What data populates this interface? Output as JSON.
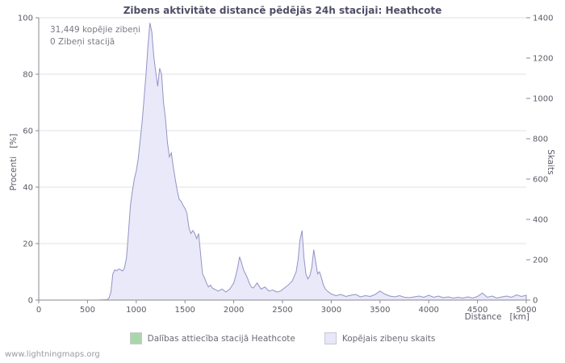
{
  "title": "Zibens aktivitāte distancē pēdējās 24h stacijai: Heathcote",
  "annotation": {
    "line1": "31,449 kopējie zibeņi",
    "line2": "0 Zibeņi stacijā"
  },
  "axes": {
    "left_label": "Procenti   [%]",
    "right_label": "Skaits",
    "x_label": "Distance   [km]"
  },
  "legend": [
    {
      "label": "Dalības attiecība stacijā Heathcote",
      "color": "#a9d7a9"
    },
    {
      "label": "Kopējais zibeņu skaits",
      "color": "#e7e7f9"
    }
  ],
  "watermark": "www.lightningmaps.org",
  "chart_data": {
    "type": "area",
    "title": "Zibens aktivitāte distancē pēdējās 24h stacijai: Heathcote",
    "xlabel": "Distance [km]",
    "left_axis": {
      "label": "Procenti [%]",
      "range": [
        0,
        100
      ],
      "ticks": [
        0,
        20,
        40,
        60,
        80,
        100
      ]
    },
    "right_axis": {
      "label": "Skaits",
      "range": [
        0,
        1400
      ],
      "ticks": [
        0,
        200,
        400,
        600,
        800,
        1000,
        1200,
        1400
      ]
    },
    "x_axis": {
      "range": [
        0,
        5000
      ],
      "ticks": [
        0,
        500,
        1000,
        1500,
        2000,
        2500,
        3000,
        3500,
        4000,
        4500,
        5000
      ]
    },
    "grid": true,
    "legend_position": "bottom",
    "colors": {
      "area_fill": "#e7e7f9",
      "area_stroke": "#9393c4",
      "grid": "#e2e2e6",
      "axis": "#8a8a92",
      "tick_text": "#5a5a66"
    },
    "series": [
      {
        "name": "Kopējais zibeņu skaits",
        "axis": "right",
        "points": [
          [
            0,
            0
          ],
          [
            600,
            0
          ],
          [
            700,
            2
          ],
          [
            720,
            10
          ],
          [
            740,
            40
          ],
          [
            760,
            130
          ],
          [
            780,
            150
          ],
          [
            800,
            145
          ],
          [
            820,
            155
          ],
          [
            840,
            150
          ],
          [
            860,
            145
          ],
          [
            880,
            160
          ],
          [
            900,
            210
          ],
          [
            920,
            330
          ],
          [
            940,
            470
          ],
          [
            960,
            540
          ],
          [
            980,
            600
          ],
          [
            1000,
            640
          ],
          [
            1020,
            700
          ],
          [
            1040,
            790
          ],
          [
            1060,
            880
          ],
          [
            1080,
            1000
          ],
          [
            1100,
            1120
          ],
          [
            1120,
            1260
          ],
          [
            1140,
            1375
          ],
          [
            1160,
            1330
          ],
          [
            1180,
            1210
          ],
          [
            1200,
            1130
          ],
          [
            1220,
            1060
          ],
          [
            1240,
            1150
          ],
          [
            1260,
            1120
          ],
          [
            1280,
            980
          ],
          [
            1300,
            900
          ],
          [
            1320,
            780
          ],
          [
            1340,
            710
          ],
          [
            1360,
            730
          ],
          [
            1380,
            660
          ],
          [
            1400,
            600
          ],
          [
            1420,
            545
          ],
          [
            1440,
            500
          ],
          [
            1460,
            490
          ],
          [
            1480,
            470
          ],
          [
            1500,
            455
          ],
          [
            1520,
            430
          ],
          [
            1540,
            360
          ],
          [
            1560,
            330
          ],
          [
            1580,
            345
          ],
          [
            1600,
            330
          ],
          [
            1620,
            305
          ],
          [
            1640,
            330
          ],
          [
            1660,
            230
          ],
          [
            1680,
            130
          ],
          [
            1700,
            110
          ],
          [
            1720,
            85
          ],
          [
            1740,
            65
          ],
          [
            1760,
            75
          ],
          [
            1780,
            60
          ],
          [
            1800,
            55
          ],
          [
            1840,
            45
          ],
          [
            1880,
            55
          ],
          [
            1920,
            40
          ],
          [
            1960,
            55
          ],
          [
            2000,
            85
          ],
          [
            2020,
            120
          ],
          [
            2040,
            160
          ],
          [
            2060,
            215
          ],
          [
            2080,
            185
          ],
          [
            2100,
            150
          ],
          [
            2120,
            130
          ],
          [
            2140,
            110
          ],
          [
            2160,
            85
          ],
          [
            2180,
            65
          ],
          [
            2200,
            60
          ],
          [
            2240,
            85
          ],
          [
            2280,
            55
          ],
          [
            2320,
            65
          ],
          [
            2360,
            45
          ],
          [
            2400,
            50
          ],
          [
            2440,
            40
          ],
          [
            2480,
            45
          ],
          [
            2520,
            60
          ],
          [
            2560,
            75
          ],
          [
            2600,
            95
          ],
          [
            2640,
            140
          ],
          [
            2660,
            200
          ],
          [
            2680,
            300
          ],
          [
            2700,
            345
          ],
          [
            2720,
            210
          ],
          [
            2740,
            130
          ],
          [
            2760,
            105
          ],
          [
            2780,
            120
          ],
          [
            2800,
            160
          ],
          [
            2820,
            250
          ],
          [
            2840,
            190
          ],
          [
            2860,
            130
          ],
          [
            2880,
            140
          ],
          [
            2900,
            110
          ],
          [
            2920,
            75
          ],
          [
            2940,
            55
          ],
          [
            2960,
            45
          ],
          [
            3000,
            30
          ],
          [
            3050,
            22
          ],
          [
            3100,
            28
          ],
          [
            3150,
            18
          ],
          [
            3200,
            24
          ],
          [
            3250,
            28
          ],
          [
            3300,
            16
          ],
          [
            3350,
            22
          ],
          [
            3400,
            18
          ],
          [
            3450,
            28
          ],
          [
            3500,
            45
          ],
          [
            3550,
            30
          ],
          [
            3600,
            20
          ],
          [
            3650,
            16
          ],
          [
            3700,
            22
          ],
          [
            3750,
            14
          ],
          [
            3800,
            12
          ],
          [
            3850,
            16
          ],
          [
            3900,
            20
          ],
          [
            3950,
            14
          ],
          [
            4000,
            24
          ],
          [
            4050,
            14
          ],
          [
            4100,
            20
          ],
          [
            4150,
            12
          ],
          [
            4200,
            16
          ],
          [
            4250,
            10
          ],
          [
            4300,
            14
          ],
          [
            4350,
            10
          ],
          [
            4400,
            16
          ],
          [
            4450,
            10
          ],
          [
            4500,
            18
          ],
          [
            4550,
            35
          ],
          [
            4600,
            14
          ],
          [
            4650,
            20
          ],
          [
            4700,
            10
          ],
          [
            4750,
            16
          ],
          [
            4800,
            20
          ],
          [
            4850,
            14
          ],
          [
            4900,
            26
          ],
          [
            4950,
            18
          ],
          [
            5000,
            24
          ]
        ]
      },
      {
        "name": "Dalības attiecība stacijā Heathcote",
        "axis": "left",
        "points": [
          [
            0,
            0
          ],
          [
            5000,
            0
          ]
        ]
      }
    ]
  }
}
